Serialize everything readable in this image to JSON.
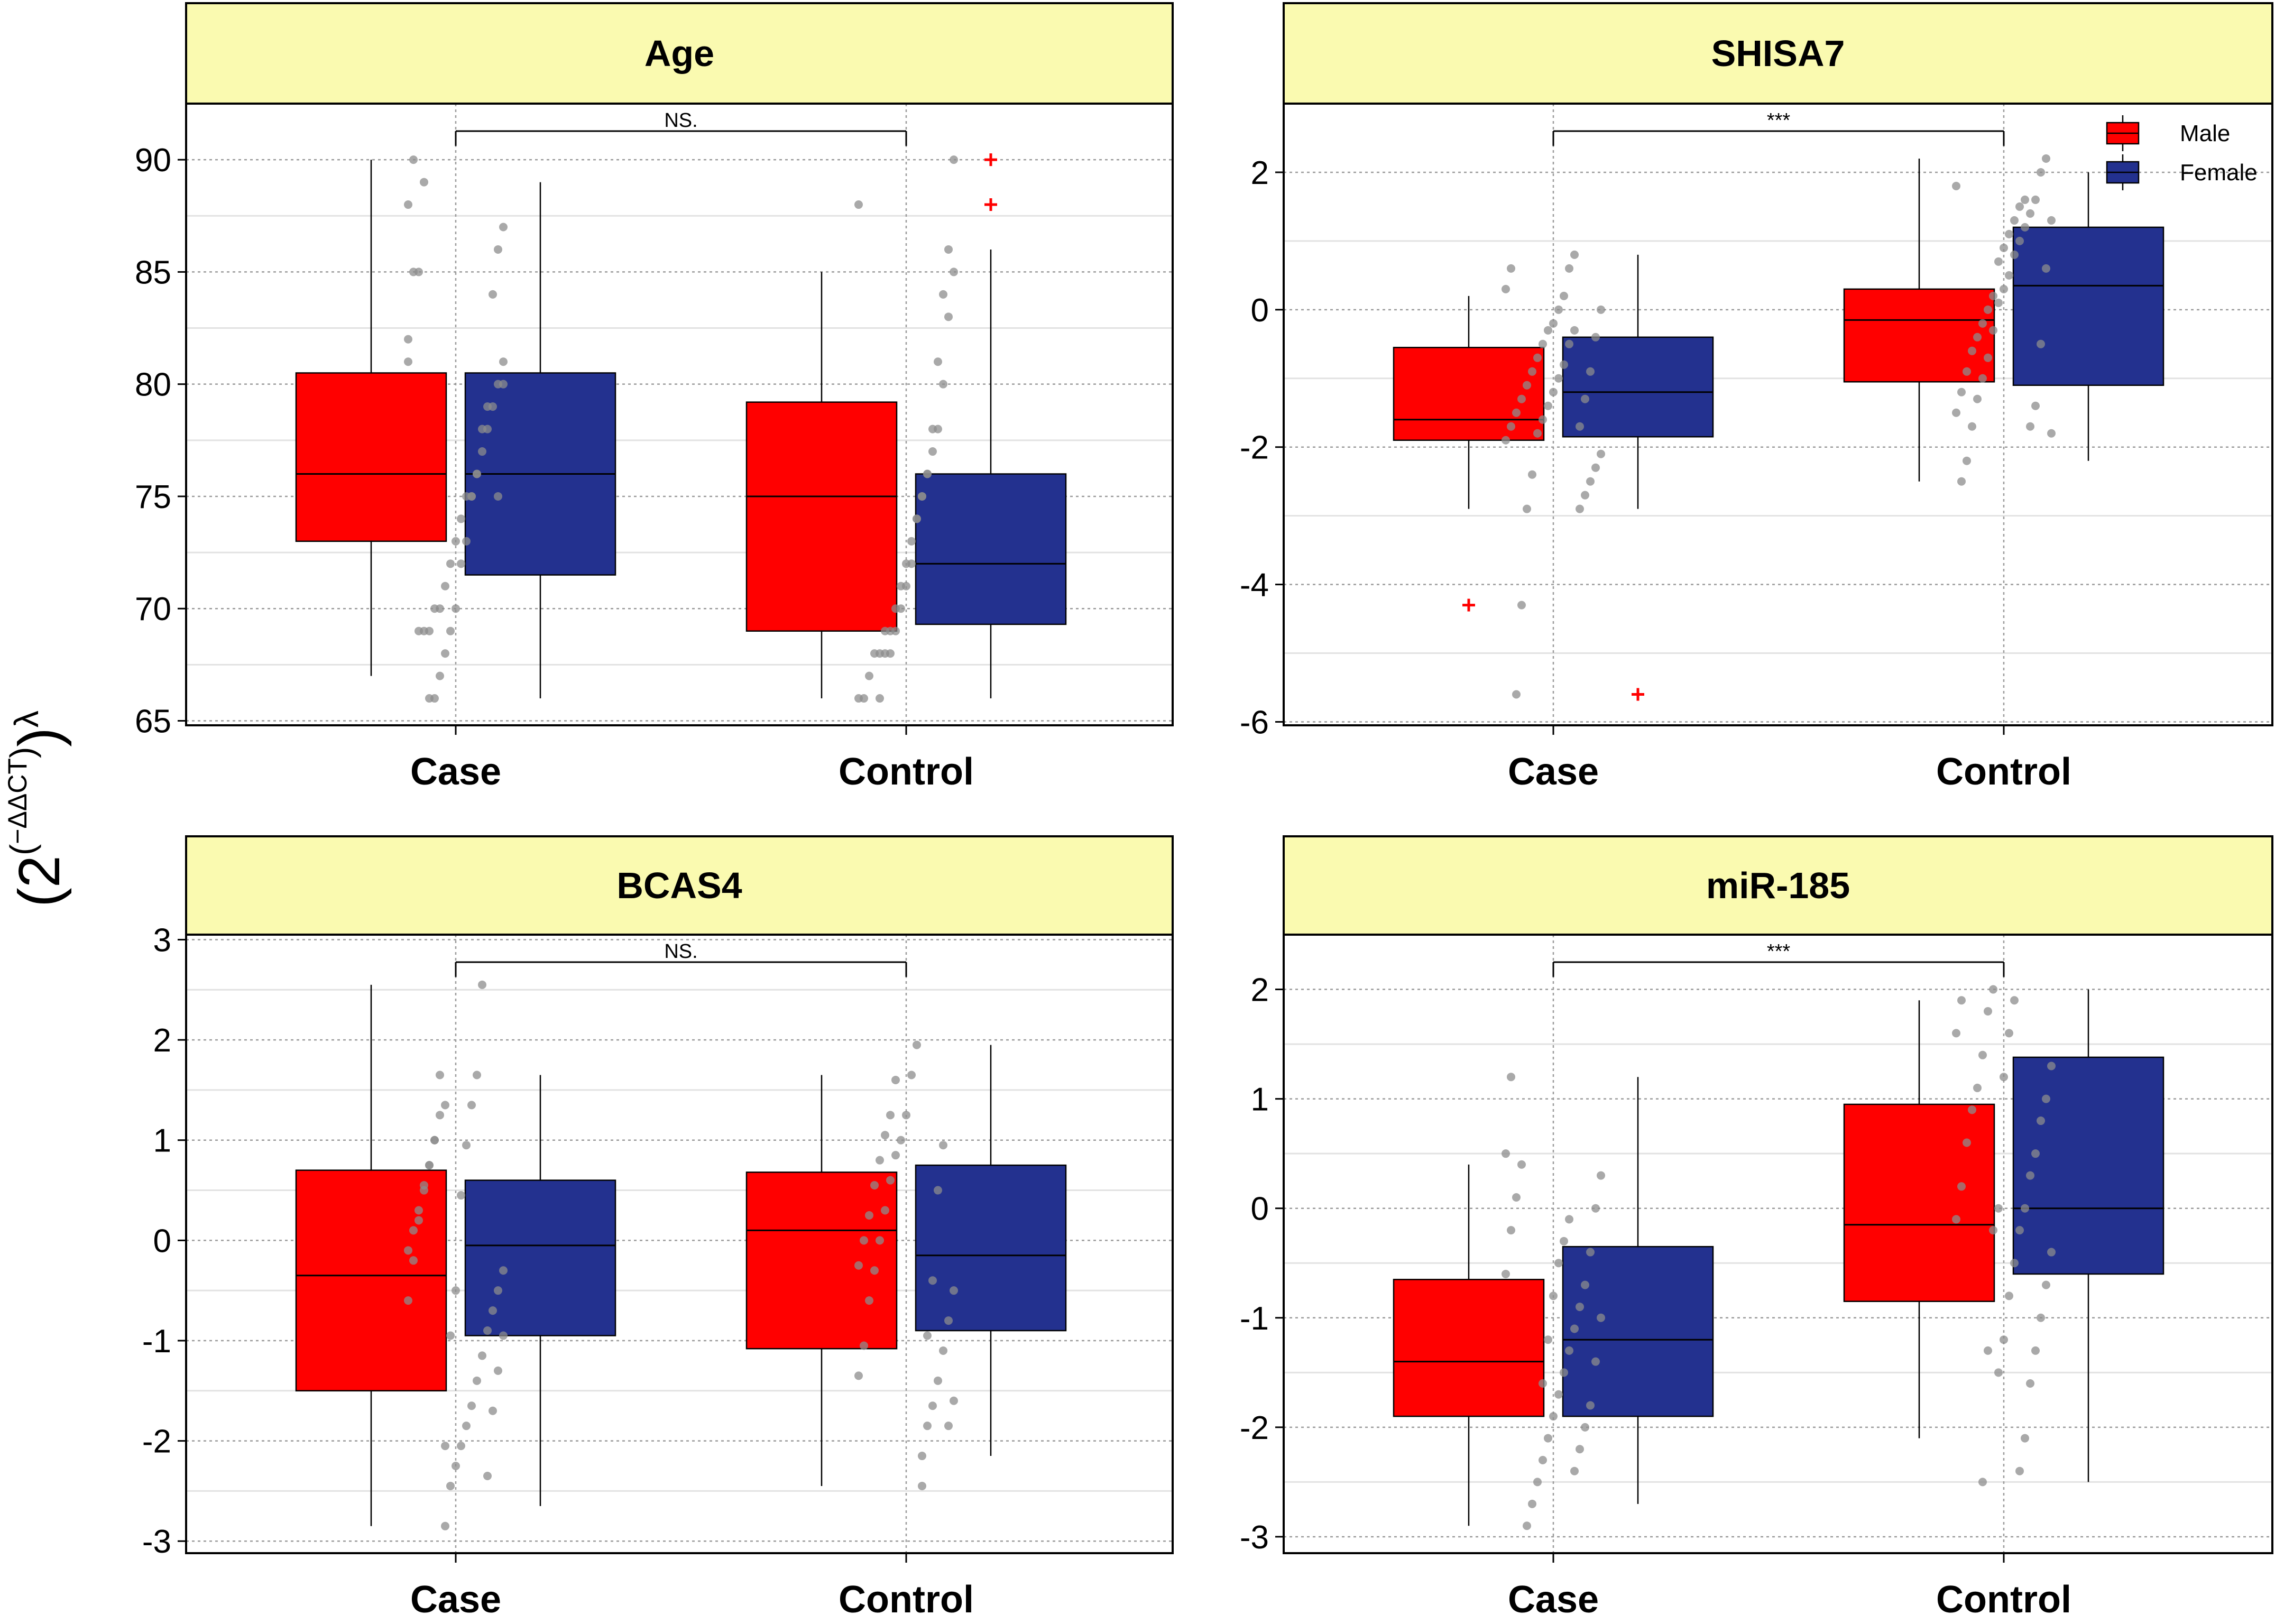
{
  "figure": {
    "ylabel": {
      "open": "(2",
      "exp_open": "(",
      "exp_text": "−ΔΔCT",
      "exp_close": ")",
      "close": ")",
      "power": "λ"
    }
  },
  "colors": {
    "male": "#ff0000",
    "female": "#23318f",
    "strip": "#fafab0",
    "point": "#8c8c8c",
    "outlier": "#ff0000"
  },
  "legend": {
    "items": [
      {
        "label": "Male",
        "color": "#ff0000"
      },
      {
        "label": "Female",
        "color": "#23318f"
      }
    ]
  },
  "chart_data": [
    {
      "type": "box",
      "title": "Age",
      "categories": [
        "Case",
        "Control"
      ],
      "ylim": [
        64.8,
        92.5
      ],
      "yticks": [
        65,
        70,
        75,
        80,
        85,
        90
      ],
      "significance": "NS.",
      "series": [
        {
          "name": "Male",
          "boxes": [
            {
              "category": "Case",
              "min": 67,
              "q1": 73,
              "median": 76,
              "q3": 80.5,
              "max": 90,
              "outliers": []
            },
            {
              "category": "Control",
              "min": 66,
              "q1": 69,
              "median": 75,
              "q3": 79.2,
              "max": 85,
              "outliers": []
            }
          ]
        },
        {
          "name": "Female",
          "boxes": [
            {
              "category": "Case",
              "min": 66,
              "q1": 71.5,
              "median": 76,
              "q3": 80.5,
              "max": 89,
              "outliers": []
            },
            {
              "category": "Control",
              "min": 66,
              "q1": 69.3,
              "median": 72,
              "q3": 76,
              "max": 86,
              "outliers": [
                90,
                88
              ]
            }
          ]
        }
      ],
      "points": [
        {
          "category": "Case",
          "values": [
            81,
            81,
            80,
            79,
            78,
            77,
            76,
            75,
            75,
            74,
            73,
            72,
            71,
            70,
            70,
            69,
            69,
            69,
            90,
            88,
            87,
            86,
            84,
            79,
            78,
            76,
            75,
            73,
            72,
            70,
            69,
            68,
            67,
            66,
            66,
            89,
            85,
            85,
            82,
            80,
            75
          ]
        },
        {
          "category": "Control",
          "values": [
            88,
            85,
            83,
            80,
            78,
            77,
            76,
            75,
            74,
            73,
            72,
            71,
            70,
            69,
            69,
            68,
            68,
            67,
            66,
            66,
            90,
            86,
            84,
            81,
            78,
            76,
            75,
            74,
            72,
            71,
            70,
            69,
            68,
            68,
            66
          ]
        }
      ]
    },
    {
      "type": "box",
      "title": "SHISA7",
      "categories": [
        "Case",
        "Control"
      ],
      "ylim": [
        -6.05,
        3.0
      ],
      "yticks": [
        -6,
        -4,
        -2,
        0,
        2
      ],
      "significance": "***",
      "series": [
        {
          "name": "Male",
          "boxes": [
            {
              "category": "Case",
              "min": -2.9,
              "q1": -1.9,
              "median": -1.6,
              "q3": -0.55,
              "max": 0.2,
              "outliers": [
                -4.3
              ]
            },
            {
              "category": "Control",
              "min": -2.5,
              "q1": -1.05,
              "median": -0.15,
              "q3": 0.3,
              "max": 2.2,
              "outliers": []
            }
          ]
        },
        {
          "name": "Female",
          "boxes": [
            {
              "category": "Case",
              "min": -2.9,
              "q1": -1.85,
              "median": -1.2,
              "q3": -0.4,
              "max": 0.8,
              "outliers": [
                -5.6
              ]
            },
            {
              "category": "Control",
              "min": -2.2,
              "q1": -1.1,
              "median": 0.35,
              "q3": 1.2,
              "max": 2.0,
              "outliers": []
            }
          ]
        }
      ],
      "points": [
        {
          "category": "Case",
          "values": [
            0.8,
            0.6,
            0.2,
            0.0,
            -0.2,
            -0.3,
            -0.5,
            -0.7,
            -0.9,
            -1.1,
            -1.3,
            -1.5,
            -1.7,
            -1.9,
            -2.1,
            -2.3,
            -2.5,
            -2.7,
            -2.9,
            -0.3,
            -0.5,
            -0.8,
            -1.0,
            -1.2,
            -1.4,
            -1.6,
            -1.8,
            -2.4,
            -2.9,
            -4.3,
            -5.6,
            0.6,
            0.3,
            0.0,
            -0.4,
            -0.9,
            -1.3,
            -1.7
          ]
        },
        {
          "category": "Control",
          "values": [
            1.6,
            1.5,
            1.3,
            1.1,
            0.9,
            0.7,
            0.2,
            0.0,
            -0.2,
            -0.4,
            -0.6,
            -0.9,
            -1.2,
            -1.5,
            -1.8,
            2.2,
            2.0,
            1.6,
            1.4,
            1.2,
            1.0,
            0.8,
            0.5,
            0.3,
            0.1,
            -0.3,
            -0.7,
            -1.0,
            -1.3,
            -1.7,
            -2.2,
            -2.5,
            1.8,
            1.3,
            0.6,
            -0.5,
            -1.4,
            -1.7
          ]
        }
      ]
    },
    {
      "type": "box",
      "title": "BCAS4",
      "categories": [
        "Case",
        "Control"
      ],
      "ylim": [
        -3.12,
        3.05
      ],
      "yticks": [
        -3,
        -2,
        -1,
        0,
        1,
        2,
        3
      ],
      "significance": "NS.",
      "series": [
        {
          "name": "Male",
          "boxes": [
            {
              "category": "Case",
              "min": -2.85,
              "q1": -1.5,
              "median": -0.35,
              "q3": 0.7,
              "max": 2.55,
              "outliers": []
            },
            {
              "category": "Control",
              "min": -2.45,
              "q1": -1.08,
              "median": 0.1,
              "q3": 0.68,
              "max": 1.65,
              "outliers": []
            }
          ]
        },
        {
          "name": "Female",
          "boxes": [
            {
              "category": "Case",
              "min": -2.65,
              "q1": -0.95,
              "median": -0.05,
              "q3": 0.6,
              "max": 1.65,
              "outliers": []
            },
            {
              "category": "Control",
              "min": -2.15,
              "q1": -0.9,
              "median": -0.15,
              "q3": 0.75,
              "max": 1.95,
              "outliers": []
            }
          ]
        }
      ],
      "points": [
        {
          "category": "Case",
          "values": [
            1.35,
            1.25,
            1.0,
            0.75,
            0.55,
            0.3,
            0.1,
            -0.1,
            -0.3,
            -0.5,
            -0.7,
            -0.9,
            -1.15,
            -1.4,
            -1.65,
            -1.85,
            -2.05,
            -2.25,
            -2.45,
            -2.85,
            1.65,
            1.0,
            0.75,
            0.5,
            0.2,
            -0.2,
            -0.6,
            -0.95,
            -1.3,
            -1.7,
            -2.35,
            2.55,
            1.65,
            1.35,
            0.95,
            0.45,
            -0.5,
            -0.95,
            -2.05
          ]
        },
        {
          "category": "Control",
          "values": [
            1.6,
            1.25,
            1.05,
            0.8,
            0.55,
            0.25,
            0.0,
            -0.25,
            -0.5,
            -0.8,
            -1.1,
            -1.4,
            -1.65,
            -1.85,
            -2.45,
            1.95,
            1.65,
            1.25,
            1.0,
            0.85,
            0.6,
            0.3,
            0.0,
            -0.3,
            -0.6,
            -1.05,
            -1.35,
            -1.6,
            -1.85,
            0.95,
            0.5,
            -0.4,
            -0.95,
            -2.15
          ]
        }
      ]
    },
    {
      "type": "box",
      "title": "miR-185",
      "categories": [
        "Case",
        "Control"
      ],
      "ylim": [
        -3.15,
        2.5
      ],
      "yticks": [
        -3,
        -2,
        -1,
        0,
        1,
        2
      ],
      "significance": "***",
      "series": [
        {
          "name": "Male",
          "boxes": [
            {
              "category": "Case",
              "min": -2.9,
              "q1": -1.9,
              "median": -1.4,
              "q3": -0.65,
              "max": 0.4,
              "outliers": []
            },
            {
              "category": "Control",
              "min": -2.1,
              "q1": -0.85,
              "median": -0.15,
              "q3": 0.95,
              "max": 1.9,
              "outliers": []
            }
          ]
        },
        {
          "name": "Female",
          "boxes": [
            {
              "category": "Case",
              "min": -2.7,
              "q1": -1.9,
              "median": -1.2,
              "q3": -0.35,
              "max": 1.2,
              "outliers": []
            },
            {
              "category": "Control",
              "min": -2.5,
              "q1": -0.6,
              "median": 0.0,
              "q3": 1.38,
              "max": 2.0,
              "outliers": []
            }
          ]
        }
      ],
      "points": [
        {
          "category": "Case",
          "values": [
            1.2,
            0.5,
            0.3,
            0.0,
            -0.4,
            -0.7,
            -0.9,
            -1.1,
            -1.3,
            -1.5,
            -1.7,
            -1.9,
            -2.1,
            -2.3,
            -2.5,
            -2.7,
            -2.9,
            0.4,
            0.1,
            -0.2,
            -0.6,
            -1.0,
            -1.4,
            -1.8,
            -2.0,
            -2.2,
            -2.4,
            -0.1,
            -0.3,
            -0.5,
            -0.8,
            -1.2,
            -1.6
          ]
        },
        {
          "category": "Control",
          "values": [
            1.9,
            1.6,
            1.3,
            1.0,
            0.8,
            0.5,
            0.3,
            0.0,
            -0.2,
            -0.5,
            -0.8,
            -1.2,
            -1.5,
            2.0,
            1.8,
            1.4,
            1.1,
            0.9,
            0.6,
            0.2,
            -0.1,
            -0.4,
            -0.7,
            -1.0,
            -1.3,
            -1.6,
            -2.1,
            -2.4,
            1.9,
            1.6,
            1.2,
            0.0,
            -0.2,
            -1.3,
            -2.5
          ]
        }
      ]
    }
  ]
}
